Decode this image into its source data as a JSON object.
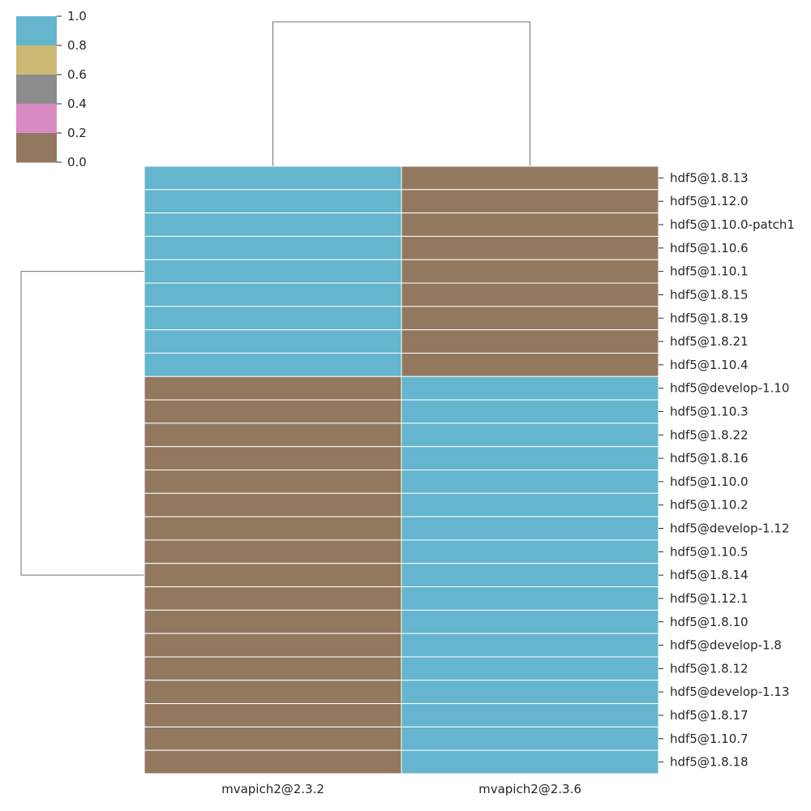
{
  "chart_data": {
    "type": "heatmap",
    "title": "",
    "xlabel": "",
    "ylabel": "",
    "columns": [
      "mvapich2@2.3.2",
      "mvapich2@2.3.6"
    ],
    "rows": [
      "hdf5@1.8.13",
      "hdf5@1.12.0",
      "hdf5@1.10.0-patch1",
      "hdf5@1.10.6",
      "hdf5@1.10.1",
      "hdf5@1.8.15",
      "hdf5@1.8.19",
      "hdf5@1.8.21",
      "hdf5@1.10.4",
      "hdf5@develop-1.10",
      "hdf5@1.10.3",
      "hdf5@1.8.22",
      "hdf5@1.8.16",
      "hdf5@1.10.0",
      "hdf5@1.10.2",
      "hdf5@develop-1.12",
      "hdf5@1.10.5",
      "hdf5@1.8.14",
      "hdf5@1.12.1",
      "hdf5@1.8.10",
      "hdf5@develop-1.8",
      "hdf5@1.8.12",
      "hdf5@develop-1.13",
      "hdf5@1.8.17",
      "hdf5@1.10.7",
      "hdf5@1.8.18"
    ],
    "values": [
      [
        1,
        0
      ],
      [
        1,
        0
      ],
      [
        1,
        0
      ],
      [
        1,
        0
      ],
      [
        1,
        0
      ],
      [
        1,
        0
      ],
      [
        1,
        0
      ],
      [
        1,
        0
      ],
      [
        1,
        0
      ],
      [
        0,
        1
      ],
      [
        0,
        1
      ],
      [
        0,
        1
      ],
      [
        0,
        1
      ],
      [
        0,
        1
      ],
      [
        0,
        1
      ],
      [
        0,
        1
      ],
      [
        0,
        1
      ],
      [
        0,
        1
      ],
      [
        0,
        1
      ],
      [
        0,
        1
      ],
      [
        0,
        1
      ],
      [
        0,
        1
      ],
      [
        0,
        1
      ],
      [
        0,
        1
      ],
      [
        0,
        1
      ],
      [
        0,
        1
      ]
    ],
    "colorbar": {
      "range": [
        0,
        1
      ],
      "ticks": [
        "1.0",
        "0.8",
        "0.6",
        "0.4",
        "0.2",
        "0.0"
      ],
      "colors": [
        "#64b5cd",
        "#ccb974",
        "#8c8c8c",
        "#da8bc3",
        "#937860"
      ]
    },
    "column_dendrogram": "two columns joined at top",
    "row_dendrogram": "two clusters (rows 1-9 vs rows 10-26)",
    "grid": false
  }
}
